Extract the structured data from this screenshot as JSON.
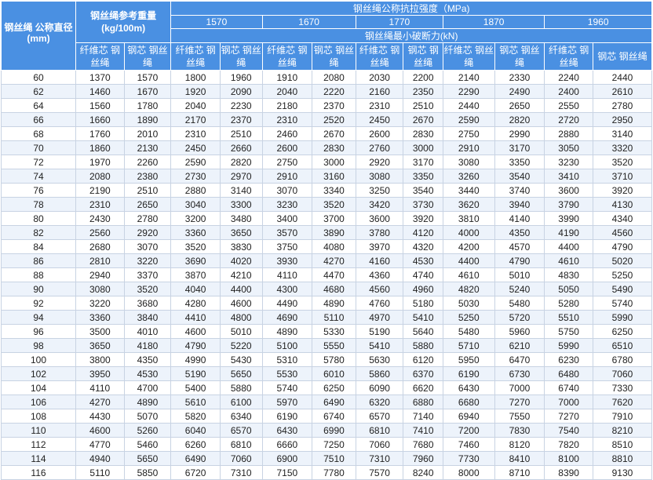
{
  "table": {
    "diameter_header": "钢丝绳 公称直径 (mm)",
    "weight_header": "钢丝绳参考重量 (kg/100m)",
    "strength_header": "钢丝绳公称抗拉强度（MPa)",
    "grades": [
      "1570",
      "1670",
      "1770",
      "1870",
      "1960"
    ],
    "breaking_force_header": "钢丝绳最小破断力(kN)",
    "sub_fiber": "纤维芯 钢丝绳",
    "sub_steel": "钢芯 钢丝绳",
    "rows": [
      [
        "60",
        "1370",
        "1570",
        "1800",
        "1960",
        "1910",
        "2080",
        "2030",
        "2200",
        "2140",
        "2330",
        "2240",
        "2440"
      ],
      [
        "62",
        "1460",
        "1670",
        "1920",
        "2090",
        "2040",
        "2220",
        "2160",
        "2350",
        "2290",
        "2490",
        "2400",
        "2610"
      ],
      [
        "64",
        "1560",
        "1780",
        "2040",
        "2230",
        "2180",
        "2370",
        "2310",
        "2510",
        "2440",
        "2650",
        "2550",
        "2780"
      ],
      [
        "66",
        "1660",
        "1890",
        "2170",
        "2370",
        "2310",
        "2520",
        "2450",
        "2670",
        "2590",
        "2820",
        "2720",
        "2950"
      ],
      [
        "68",
        "1760",
        "2010",
        "2310",
        "2510",
        "2460",
        "2670",
        "2600",
        "2830",
        "2750",
        "2990",
        "2880",
        "3140"
      ],
      [
        "70",
        "1860",
        "2130",
        "2450",
        "2660",
        "2600",
        "2830",
        "2760",
        "3000",
        "2910",
        "3170",
        "3050",
        "3320"
      ],
      [
        "72",
        "1970",
        "2260",
        "2590",
        "2820",
        "2750",
        "3000",
        "2920",
        "3170",
        "3080",
        "3350",
        "3230",
        "3520"
      ],
      [
        "74",
        "2080",
        "2380",
        "2730",
        "2970",
        "2910",
        "3160",
        "3080",
        "3350",
        "3260",
        "3540",
        "3410",
        "3710"
      ],
      [
        "76",
        "2190",
        "2510",
        "2880",
        "3140",
        "3070",
        "3340",
        "3250",
        "3540",
        "3440",
        "3740",
        "3600",
        "3920"
      ],
      [
        "78",
        "2310",
        "2650",
        "3040",
        "3300",
        "3230",
        "3520",
        "3420",
        "3730",
        "3620",
        "3940",
        "3790",
        "4130"
      ],
      [
        "80",
        "2430",
        "2780",
        "3200",
        "3480",
        "3400",
        "3700",
        "3600",
        "3920",
        "3810",
        "4140",
        "3990",
        "4340"
      ],
      [
        "82",
        "2560",
        "2920",
        "3360",
        "3650",
        "3570",
        "3890",
        "3780",
        "4120",
        "4000",
        "4350",
        "4190",
        "4560"
      ],
      [
        "84",
        "2680",
        "3070",
        "3520",
        "3830",
        "3750",
        "4080",
        "3970",
        "4320",
        "4200",
        "4570",
        "4400",
        "4790"
      ],
      [
        "86",
        "2810",
        "3220",
        "3690",
        "4020",
        "3930",
        "4270",
        "4160",
        "4530",
        "4400",
        "4790",
        "4610",
        "5020"
      ],
      [
        "88",
        "2940",
        "3370",
        "3870",
        "4210",
        "4110",
        "4470",
        "4360",
        "4740",
        "4610",
        "5010",
        "4830",
        "5250"
      ],
      [
        "90",
        "3080",
        "3520",
        "4040",
        "4400",
        "4300",
        "4680",
        "4560",
        "4960",
        "4820",
        "5240",
        "5050",
        "5490"
      ],
      [
        "92",
        "3220",
        "3680",
        "4280",
        "4600",
        "4490",
        "4890",
        "4760",
        "5180",
        "5030",
        "5480",
        "5280",
        "5740"
      ],
      [
        "94",
        "3360",
        "3840",
        "4410",
        "4800",
        "4690",
        "5110",
        "4970",
        "5410",
        "5250",
        "5720",
        "5510",
        "5990"
      ],
      [
        "96",
        "3500",
        "4010",
        "4600",
        "5010",
        "4890",
        "5330",
        "5190",
        "5640",
        "5480",
        "5960",
        "5750",
        "6250"
      ],
      [
        "98",
        "3650",
        "4180",
        "4790",
        "5220",
        "5100",
        "5550",
        "5410",
        "5880",
        "5710",
        "6210",
        "5990",
        "6510"
      ],
      [
        "100",
        "3800",
        "4350",
        "4990",
        "5430",
        "5310",
        "5780",
        "5630",
        "6120",
        "5950",
        "6470",
        "6230",
        "6780"
      ],
      [
        "102",
        "3950",
        "4530",
        "5190",
        "5650",
        "5530",
        "6010",
        "5860",
        "6370",
        "6190",
        "6730",
        "6480",
        "7060"
      ],
      [
        "104",
        "4110",
        "4700",
        "5400",
        "5880",
        "5740",
        "6250",
        "6090",
        "6620",
        "6430",
        "7000",
        "6740",
        "7330"
      ],
      [
        "106",
        "4270",
        "4890",
        "5610",
        "6100",
        "5970",
        "6490",
        "6320",
        "6880",
        "6680",
        "7270",
        "7000",
        "7620"
      ],
      [
        "108",
        "4430",
        "5070",
        "5820",
        "6340",
        "6190",
        "6740",
        "6570",
        "7140",
        "6940",
        "7550",
        "7270",
        "7910"
      ],
      [
        "110",
        "4600",
        "5260",
        "6040",
        "6570",
        "6430",
        "6990",
        "6810",
        "7410",
        "7200",
        "7830",
        "7540",
        "8210"
      ],
      [
        "112",
        "4770",
        "5460",
        "6260",
        "6810",
        "6660",
        "7250",
        "7060",
        "7680",
        "7460",
        "8120",
        "7820",
        "8510"
      ],
      [
        "114",
        "4940",
        "5650",
        "6490",
        "7060",
        "6900",
        "7510",
        "7310",
        "7960",
        "7730",
        "8410",
        "8100",
        "8810"
      ],
      [
        "116",
        "5110",
        "5850",
        "6720",
        "7310",
        "7150",
        "7780",
        "7570",
        "8240",
        "8000",
        "8710",
        "8390",
        "9130"
      ]
    ]
  }
}
